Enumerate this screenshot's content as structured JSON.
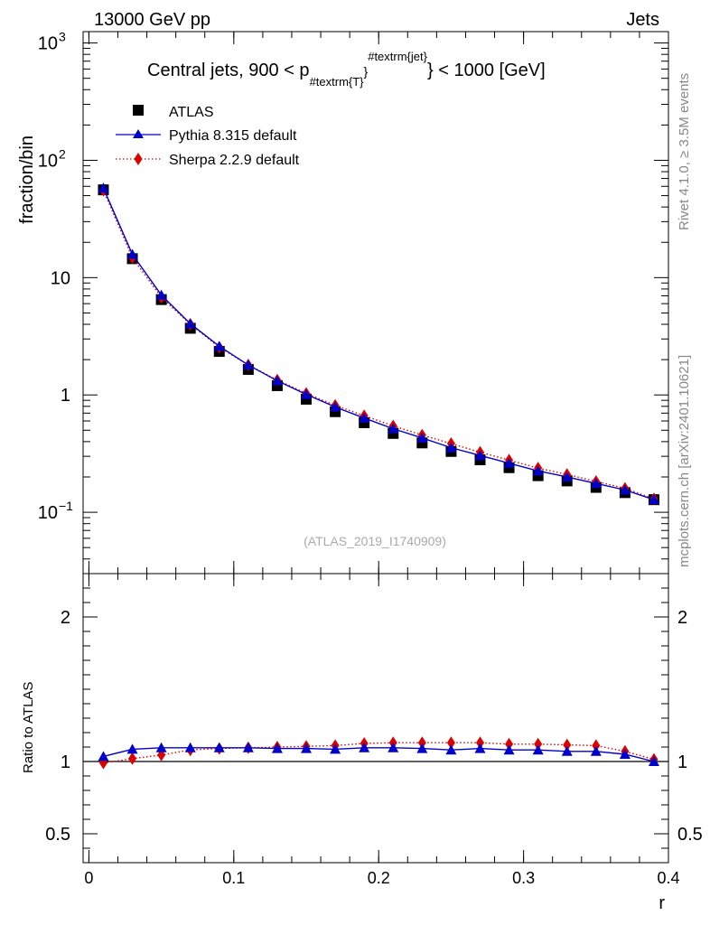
{
  "header": {
    "left_label": "13000 GeV pp",
    "right_label": "Jets",
    "side_label_top": "Rivet 4.1.0, ≥ 3.5M events",
    "side_label_bottom": "mcplots.cern.ch [arXiv:2401.10621]",
    "analysis_id": "(ATLAS_2019_I1740909)"
  },
  "chart_data": {
    "type": "line",
    "title": "Central jets, 900 < p",
    "title_sub": "#textrm{T}",
    "title_sup": "#textrm{jet}",
    "title_tail": "} < 1000 [GeV]",
    "title_brace": "}",
    "xlabel": "r",
    "ylabel_main": "fraction/bin",
    "ylabel_ratio": "Ratio to ATLAS",
    "xlim": [
      -0.004,
      0.4
    ],
    "ylim_main": [
      0.03,
      1250
    ],
    "ylim_ratio": [
      0.3,
      2.3
    ],
    "x_ticks": [
      {
        "v": 0,
        "label": "0"
      },
      {
        "v": 0.1,
        "label": "0.1"
      },
      {
        "v": 0.2,
        "label": "0.2"
      },
      {
        "v": 0.3,
        "label": "0.3"
      },
      {
        "v": 0.4,
        "label": "0.4"
      }
    ],
    "y_ticks_main": [
      {
        "v": 0.1,
        "label": "10",
        "exp": "−1"
      },
      {
        "v": 1,
        "label": "1",
        "exp": ""
      },
      {
        "v": 10,
        "label": "10",
        "exp": ""
      },
      {
        "v": 100,
        "label": "10",
        "exp": "2"
      },
      {
        "v": 1000,
        "label": "10",
        "exp": "3"
      }
    ],
    "y_ticks_ratio": [
      {
        "v": 0.5,
        "label": "0.5"
      },
      {
        "v": 1,
        "label": "1"
      },
      {
        "v": 2,
        "label": "2"
      }
    ],
    "x": [
      0.01,
      0.03,
      0.05,
      0.07,
      0.09,
      0.11,
      0.13,
      0.15,
      0.17,
      0.19,
      0.21,
      0.23,
      0.25,
      0.27,
      0.29,
      0.31,
      0.33,
      0.35,
      0.37,
      0.39
    ],
    "series": [
      {
        "name": "ATLAS",
        "color": "#000000",
        "marker": "square",
        "values": [
          56.0,
          14.5,
          6.5,
          3.7,
          2.35,
          1.65,
          1.2,
          0.92,
          0.72,
          0.58,
          0.47,
          0.39,
          0.33,
          0.28,
          0.24,
          0.205,
          0.185,
          0.163,
          0.147,
          0.128
        ]
      },
      {
        "name": "Pythia 8.315 default",
        "color": "#0000cc",
        "marker": "triangle",
        "line": "solid",
        "values": [
          58.0,
          15.8,
          7.1,
          4.05,
          2.6,
          1.8,
          1.32,
          1.01,
          0.79,
          0.635,
          0.515,
          0.43,
          0.355,
          0.305,
          0.262,
          0.225,
          0.2,
          0.176,
          0.155,
          0.128
        ],
        "ratio": [
          1.035,
          1.085,
          1.095,
          1.095,
          1.095,
          1.095,
          1.09,
          1.09,
          1.085,
          1.095,
          1.095,
          1.09,
          1.08,
          1.09,
          1.08,
          1.08,
          1.07,
          1.07,
          1.05,
          1.0
        ]
      },
      {
        "name": "Sherpa 2.2.9 default",
        "color": "#dd0000",
        "marker": "diamond",
        "line": "dotted",
        "values": [
          55.5,
          14.8,
          6.8,
          4.0,
          2.55,
          1.8,
          1.34,
          1.03,
          0.815,
          0.665,
          0.545,
          0.455,
          0.385,
          0.325,
          0.278,
          0.238,
          0.21,
          0.183,
          0.16,
          0.13
        ],
        "ratio": [
          0.99,
          1.02,
          1.045,
          1.08,
          1.09,
          1.095,
          1.1,
          1.105,
          1.11,
          1.125,
          1.13,
          1.13,
          1.13,
          1.13,
          1.12,
          1.12,
          1.115,
          1.11,
          1.07,
          1.015
        ]
      }
    ],
    "legend_position": "top-left"
  }
}
